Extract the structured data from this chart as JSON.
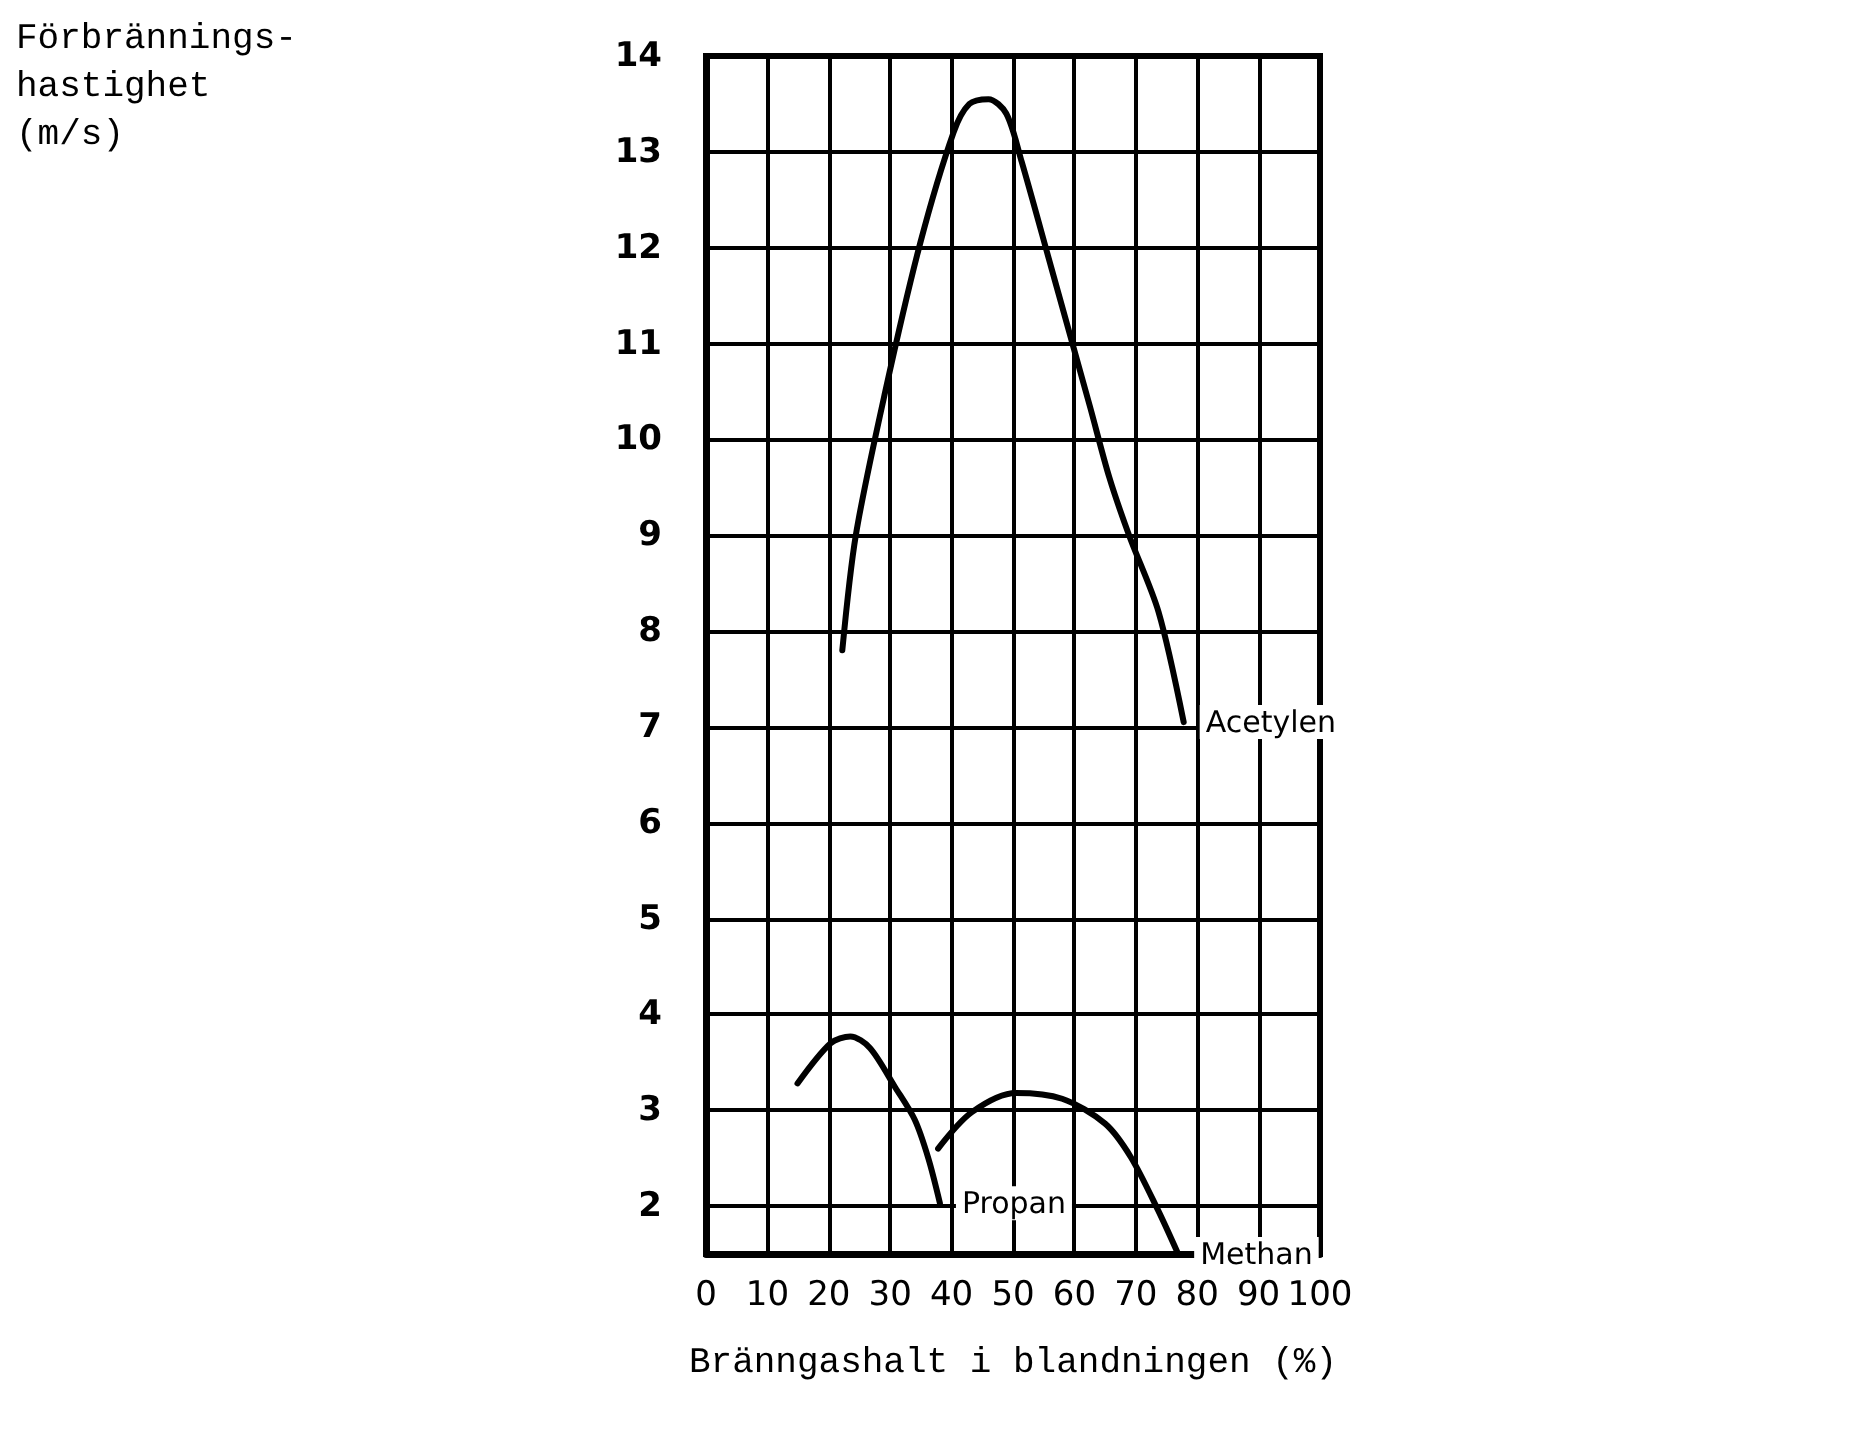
{
  "chart_data": {
    "type": "line",
    "xlabel": "Bränngashalt i blandningen (%)",
    "xlim": [
      0,
      100
    ],
    "xticks": [
      0,
      10,
      20,
      30,
      40,
      50,
      60,
      70,
      80,
      90,
      100
    ],
    "ylim": [
      1.5,
      14
    ],
    "yticks": [
      2,
      3,
      4,
      5,
      6,
      7,
      8,
      9,
      10,
      11,
      12,
      13,
      14
    ],
    "grid": true,
    "marker": "none",
    "line_style": "solid",
    "series": [
      {
        "name": "Acetylen",
        "color": "#000000",
        "x": [
          22.2,
          24.4,
          29.2,
          34.9,
          40.3,
          42.9,
          46,
          48.9,
          51.4,
          56.2,
          62.5,
          65.7,
          68.9,
          73.7,
          77.8
        ],
        "values": [
          7.8,
          9.0,
          10.5,
          12.05,
          13.2,
          13.5,
          13.55,
          13.4,
          12.9,
          11.8,
          10.35,
          9.6,
          9.0,
          8.2,
          7.05
        ]
      },
      {
        "name": "Propan",
        "color": "#000000",
        "x": [
          14.9,
          20.3,
          23.5,
          26.7,
          30.8,
          34,
          36.2,
          38.1
        ],
        "values": [
          3.28,
          3.7,
          3.77,
          3.65,
          3.24,
          2.9,
          2.5,
          2.03
        ]
      },
      {
        "name": "Methan",
        "color": "#000000",
        "x": [
          37.8,
          43.3,
          50.5,
          58,
          65,
          69.2,
          73.6,
          76.9
        ],
        "values": [
          2.6,
          2.98,
          3.18,
          3.12,
          2.86,
          2.51,
          1.96,
          1.5
        ]
      }
    ],
    "annotations": [
      "Förbrännings-\nhastighet\n(m/s)"
    ]
  }
}
